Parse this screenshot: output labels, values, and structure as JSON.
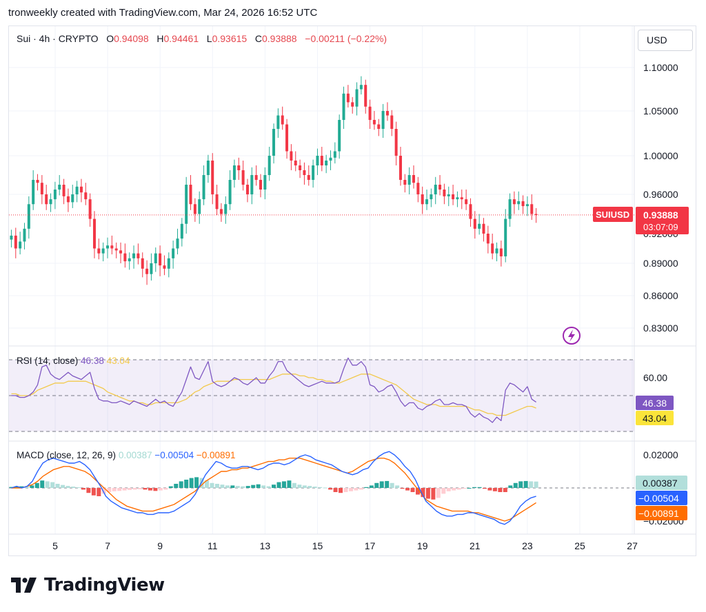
{
  "header": "tronweekly created with TradingView.com, Mar 24, 2026 16:52 UTC",
  "symbol_bar": {
    "title": "Sui · 4h · CRYPTO",
    "o_label": "O",
    "o": "0.94098",
    "h_label": "H",
    "h": "0.94461",
    "l_label": "L",
    "l": "0.93615",
    "c_label": "C",
    "c": "0.93888",
    "change": "−0.00211 (−0.22%)"
  },
  "currency": "USD",
  "colors": {
    "up": "#22ab94",
    "down": "#f23645",
    "rsi": "#7e57c2",
    "rsi_ma": "#f2c94c",
    "macd": "#2962ff",
    "signal": "#ff6d00",
    "hist_pos": "#26a69a",
    "hist_pos_light": "#b2dfdb",
    "hist_neg": "#ef5350",
    "hist_neg_light": "#ffcdd2",
    "rsi_band": "#7e57c2"
  },
  "price_tag": {
    "symbol": "SUIUSD",
    "price": "0.93888",
    "countdown": "03:07:09"
  },
  "hidden_partial_label": "0.92000",
  "rsi_panel": {
    "label": "RSI (14, close)",
    "value": "46.38",
    "ma_value": "43.04",
    "axis_label": "60.00"
  },
  "macd_panel": {
    "label": "MACD (close, 12, 26, 9)",
    "hist": "0.00387",
    "macd": "−0.00504",
    "signal": "−0.00891",
    "axis_top": "0.02000",
    "axis_bottom": "−0.02000"
  },
  "watermark": "TradingView",
  "icon": "lightning-icon",
  "chart_data": {
    "type": "candlestick",
    "timeframe": "4h",
    "price_ticks": [
      1.1,
      1.05,
      1.0,
      0.96,
      0.89,
      0.86,
      0.83
    ],
    "price_tick_labels": [
      "1.10000",
      "1.05000",
      "1.00000",
      "0.96000",
      "0.89000",
      "0.86000",
      "0.83000"
    ],
    "x_ticks": [
      5,
      7,
      9,
      11,
      13,
      15,
      17,
      19,
      21,
      23,
      25,
      27
    ],
    "x_tick_labels": [
      "5",
      "7",
      "9",
      "11",
      "13",
      "15",
      "17",
      "19",
      "21",
      "23",
      "25",
      "27"
    ],
    "x_range": [
      3.33,
      27.2
    ],
    "candle_x_start": 3.33,
    "candle_x_step": 0.1667,
    "closes": [
      0.918,
      0.905,
      0.912,
      0.925,
      0.95,
      0.975,
      0.972,
      0.96,
      0.95,
      0.955,
      0.965,
      0.97,
      0.958,
      0.952,
      0.96,
      0.968,
      0.962,
      0.955,
      0.935,
      0.905,
      0.9,
      0.905,
      0.908,
      0.905,
      0.903,
      0.9,
      0.892,
      0.895,
      0.9,
      0.895,
      0.885,
      0.88,
      0.89,
      0.9,
      0.888,
      0.885,
      0.895,
      0.905,
      0.915,
      0.93,
      0.97,
      0.95,
      0.94,
      0.955,
      0.98,
      0.995,
      0.96,
      0.945,
      0.94,
      0.95,
      0.975,
      0.99,
      0.985,
      0.97,
      0.96,
      0.98,
      0.975,
      0.965,
      0.98,
      1.0,
      1.03,
      1.045,
      1.035,
      1.005,
      0.995,
      0.99,
      0.985,
      0.98,
      0.975,
      0.99,
      1.0,
      0.99,
      0.995,
      0.998,
      1.005,
      1.04,
      1.07,
      1.06,
      1.055,
      1.075,
      1.08,
      1.055,
      1.04,
      1.035,
      1.03,
      1.05,
      1.045,
      1.03,
      1.0,
      0.975,
      0.97,
      0.98,
      0.972,
      0.96,
      0.95,
      0.955,
      0.96,
      0.97,
      0.965,
      0.958,
      0.96,
      0.955,
      0.957,
      0.955,
      0.95,
      0.935,
      0.925,
      0.93,
      0.92,
      0.91,
      0.9,
      0.905,
      0.897,
      0.935,
      0.955,
      0.95,
      0.953,
      0.948,
      0.95,
      0.94,
      0.939
    ],
    "rsi": {
      "ylim": [
        35,
        75
      ],
      "upper_band": 70,
      "lower_band": 30,
      "tick": 60,
      "values": [
        50,
        50,
        49,
        49,
        50,
        52,
        56,
        66,
        67,
        62,
        60,
        59,
        61,
        63,
        61,
        60,
        59,
        61,
        63,
        54,
        48,
        47,
        47,
        46,
        46,
        47,
        46,
        45,
        47,
        46,
        45,
        44,
        46,
        48,
        46,
        47,
        45,
        44,
        48,
        52,
        59,
        66,
        60,
        59,
        64,
        69,
        58,
        56,
        55,
        56,
        58,
        60,
        59,
        57,
        56,
        58,
        60,
        57,
        57,
        61,
        64,
        69,
        69,
        64,
        62,
        60,
        58,
        56,
        55,
        56,
        57,
        58,
        57,
        57,
        57,
        58,
        65,
        71,
        67,
        67,
        69,
        66,
        56,
        55,
        52,
        53,
        55,
        56,
        52,
        47,
        44,
        46,
        46,
        43,
        42,
        44,
        45,
        47,
        48,
        45,
        45,
        46,
        45,
        45,
        44,
        40,
        38,
        40,
        38,
        37,
        35,
        38,
        36,
        53,
        57,
        56,
        54,
        52,
        55,
        48,
        46.38
      ],
      "ma_values": [
        51,
        51,
        50,
        50,
        50,
        51,
        53,
        54,
        55,
        56,
        57,
        57,
        57,
        58,
        58,
        58,
        58,
        58,
        57,
        56,
        55,
        54,
        52,
        51,
        50,
        49,
        48,
        47,
        47,
        46,
        46,
        45,
        45,
        46,
        46,
        46,
        46,
        46,
        46,
        47,
        48,
        50,
        52,
        53,
        55,
        56,
        57,
        58,
        58,
        58,
        58,
        59,
        59,
        59,
        59,
        59,
        59,
        59,
        59,
        59,
        60,
        61,
        62,
        62,
        62,
        62,
        61,
        61,
        60,
        60,
        59,
        59,
        58,
        58,
        57,
        57,
        58,
        59,
        60,
        61,
        62,
        62,
        62,
        61,
        60,
        59,
        58,
        57,
        56,
        54,
        52,
        50,
        48,
        47,
        46,
        45,
        45,
        45,
        44,
        44,
        44,
        44,
        44,
        44,
        44,
        43,
        42,
        42,
        41,
        40,
        40,
        39,
        39,
        39,
        40,
        41,
        42,
        43,
        44,
        44,
        43.04
      ]
    },
    "macd": {
      "ylim": [
        -0.025,
        0.025
      ],
      "ticks": [
        0.02,
        -0.02
      ],
      "macd_values": [
        0,
        0.001,
        0,
        0.001,
        0.004,
        0.01,
        0.015,
        0.017,
        0.018,
        0.017,
        0.016,
        0.015,
        0.015,
        0.016,
        0.014,
        0.011,
        0.006,
        0.001,
        -0.005,
        -0.008,
        -0.01,
        -0.012,
        -0.013,
        -0.014,
        -0.015,
        -0.015,
        -0.016,
        -0.016,
        -0.015,
        -0.015,
        -0.015,
        -0.014,
        -0.012,
        -0.01,
        -0.008,
        -0.004,
        0.002,
        0.008,
        0.012,
        0.016,
        0.015,
        0.013,
        0.012,
        0.012,
        0.013,
        0.013,
        0.012,
        0.011,
        0.012,
        0.014,
        0.015,
        0.015,
        0.014,
        0.015,
        0.017,
        0.019,
        0.02,
        0.019,
        0.017,
        0.016,
        0.015,
        0.014,
        0.012,
        0.01,
        0.009,
        0.008,
        0.009,
        0.011,
        0.012,
        0.016,
        0.019,
        0.021,
        0.022,
        0.02,
        0.017,
        0.013,
        0.01,
        0.005,
        -0.002,
        -0.008,
        -0.011,
        -0.014,
        -0.016,
        -0.017,
        -0.017,
        -0.016,
        -0.016,
        -0.015,
        -0.015,
        -0.016,
        -0.017,
        -0.018,
        -0.019,
        -0.021,
        -0.022,
        -0.02,
        -0.016,
        -0.011,
        -0.008,
        -0.006,
        -0.00504
      ],
      "signal_values": [
        0,
        0,
        0,
        0.001,
        0.002,
        0.004,
        0.007,
        0.009,
        0.011,
        0.012,
        0.013,
        0.013,
        0.012,
        0.011,
        0.01,
        0.008,
        0.005,
        0.002,
        -0.001,
        -0.004,
        -0.007,
        -0.009,
        -0.011,
        -0.012,
        -0.013,
        -0.014,
        -0.014,
        -0.014,
        -0.013,
        -0.012,
        -0.011,
        -0.01,
        -0.008,
        -0.006,
        -0.004,
        -0.002,
        0.001,
        0.004,
        0.006,
        0.008,
        0.01,
        0.01,
        0.011,
        0.011,
        0.012,
        0.012,
        0.013,
        0.014,
        0.015,
        0.016,
        0.016,
        0.017,
        0.017,
        0.018,
        0.018,
        0.018,
        0.017,
        0.016,
        0.015,
        0.014,
        0.013,
        0.012,
        0.011,
        0.01,
        0.009,
        0.01,
        0.012,
        0.014,
        0.016,
        0.017,
        0.018,
        0.018,
        0.017,
        0.015,
        0.012,
        0.009,
        0.005,
        0.001,
        -0.003,
        -0.007,
        -0.009,
        -0.011,
        -0.012,
        -0.013,
        -0.014,
        -0.014,
        -0.014,
        -0.014,
        -0.015,
        -0.015,
        -0.016,
        -0.017,
        -0.018,
        -0.019,
        -0.02,
        -0.019,
        -0.017,
        -0.015,
        -0.013,
        -0.011,
        -0.00891
      ],
      "hist_values": [
        0.0006,
        0.0008,
        0.001,
        0.0008,
        0.0015,
        0.003,
        0.0045,
        0.004,
        0.0035,
        0.0025,
        0.0018,
        0.0012,
        0.0008,
        0.0004,
        -0.001,
        -0.003,
        -0.0045,
        -0.005,
        -0.0035,
        -0.0025,
        -0.002,
        -0.0018,
        -0.0015,
        -0.0012,
        -0.001,
        -0.0008,
        -0.001,
        -0.0015,
        -0.0018,
        -0.0015,
        -0.001,
        0.001,
        0.0025,
        0.004,
        0.005,
        0.006,
        0.0065,
        0.006,
        0.0045,
        0.003,
        0.0025,
        0.002,
        0.0015,
        0.0015,
        0.0012,
        0.001,
        0.0012,
        0.0018,
        0.0022,
        0.0015,
        0.001,
        0.002,
        0.0035,
        0.004,
        0.0045,
        0.003,
        0.002,
        0.0015,
        0.0012,
        0.0008,
        0.0005,
        0.0002,
        -0.001,
        -0.0025,
        -0.003,
        -0.0025,
        -0.002,
        -0.0015,
        -0.001,
        0.0005,
        0.0015,
        0.003,
        0.004,
        0.0042,
        0.003,
        0.0015,
        -0.0005,
        -0.0015,
        -0.0025,
        -0.004,
        -0.0055,
        -0.0065,
        -0.007,
        -0.006,
        -0.0035,
        -0.002,
        -0.0015,
        -0.001,
        -0.0005,
        0,
        0.0005,
        0.0005,
        -0.0005,
        -0.0015,
        -0.002,
        -0.0025,
        -0.0025,
        0.0015,
        0.003,
        0.004,
        0.0042,
        0.004,
        0.00387
      ]
    }
  }
}
